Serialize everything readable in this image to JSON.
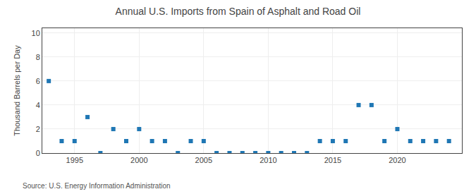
{
  "chart_data": {
    "type": "scatter",
    "title": "Annual U.S. Imports from Spain of Asphalt and Road Oil",
    "ylabel": "Thousand Barrels per Day",
    "annotations": [
      "Source: U.S. Energy Information Administration"
    ],
    "x": [
      1993,
      1994,
      1995,
      1996,
      1997,
      1998,
      1999,
      2000,
      2001,
      2002,
      2003,
      2004,
      2005,
      2006,
      2007,
      2008,
      2009,
      2010,
      2011,
      2012,
      2013,
      2014,
      2015,
      2016,
      2017,
      2018,
      2019,
      2020,
      2021,
      2022,
      2023,
      2024
    ],
    "values": [
      6,
      1,
      1,
      3,
      0,
      2,
      1,
      2,
      1,
      1,
      0,
      1,
      1,
      0,
      0,
      0,
      0,
      0,
      0,
      0,
      0,
      1,
      1,
      1,
      4,
      4,
      1,
      2,
      1,
      1,
      1,
      1
    ],
    "marker": "square",
    "xlim": [
      1992.5,
      2025
    ],
    "xticks": [
      1995,
      2000,
      2005,
      2010,
      2015,
      2020
    ],
    "ylim": [
      0,
      10.4
    ],
    "yticks": [
      0,
      2,
      4,
      6,
      8,
      10
    ],
    "grid": true
  }
}
